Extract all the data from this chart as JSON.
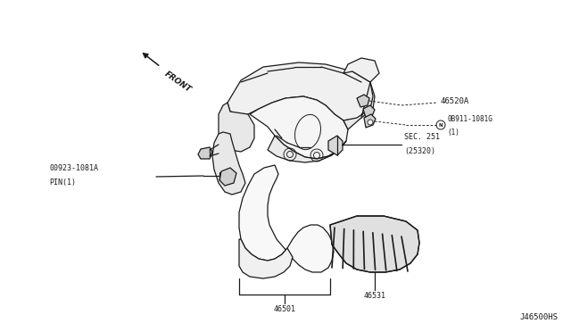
{
  "background_color": "#ffffff",
  "line_color": "#1a1a1a",
  "text_color": "#1a1a1a",
  "fig_width": 6.4,
  "fig_height": 3.72,
  "dpi": 100,
  "labels": {
    "front_arrow_text": "FRONT",
    "label_46520A": "46520A",
    "label_NDB911_circle": "N",
    "label_NDB911_main": "0B911-1081G",
    "label_NDB911_sub": "(1)",
    "label_SEC251_a": "SEC. 251",
    "label_SEC251_b": "(25320)",
    "label_00923_a": "00923-1081A",
    "label_00923_b": "PIN(1)",
    "label_46531": "46531",
    "label_46501": "46501",
    "label_J46500HS": "J46500HS"
  }
}
